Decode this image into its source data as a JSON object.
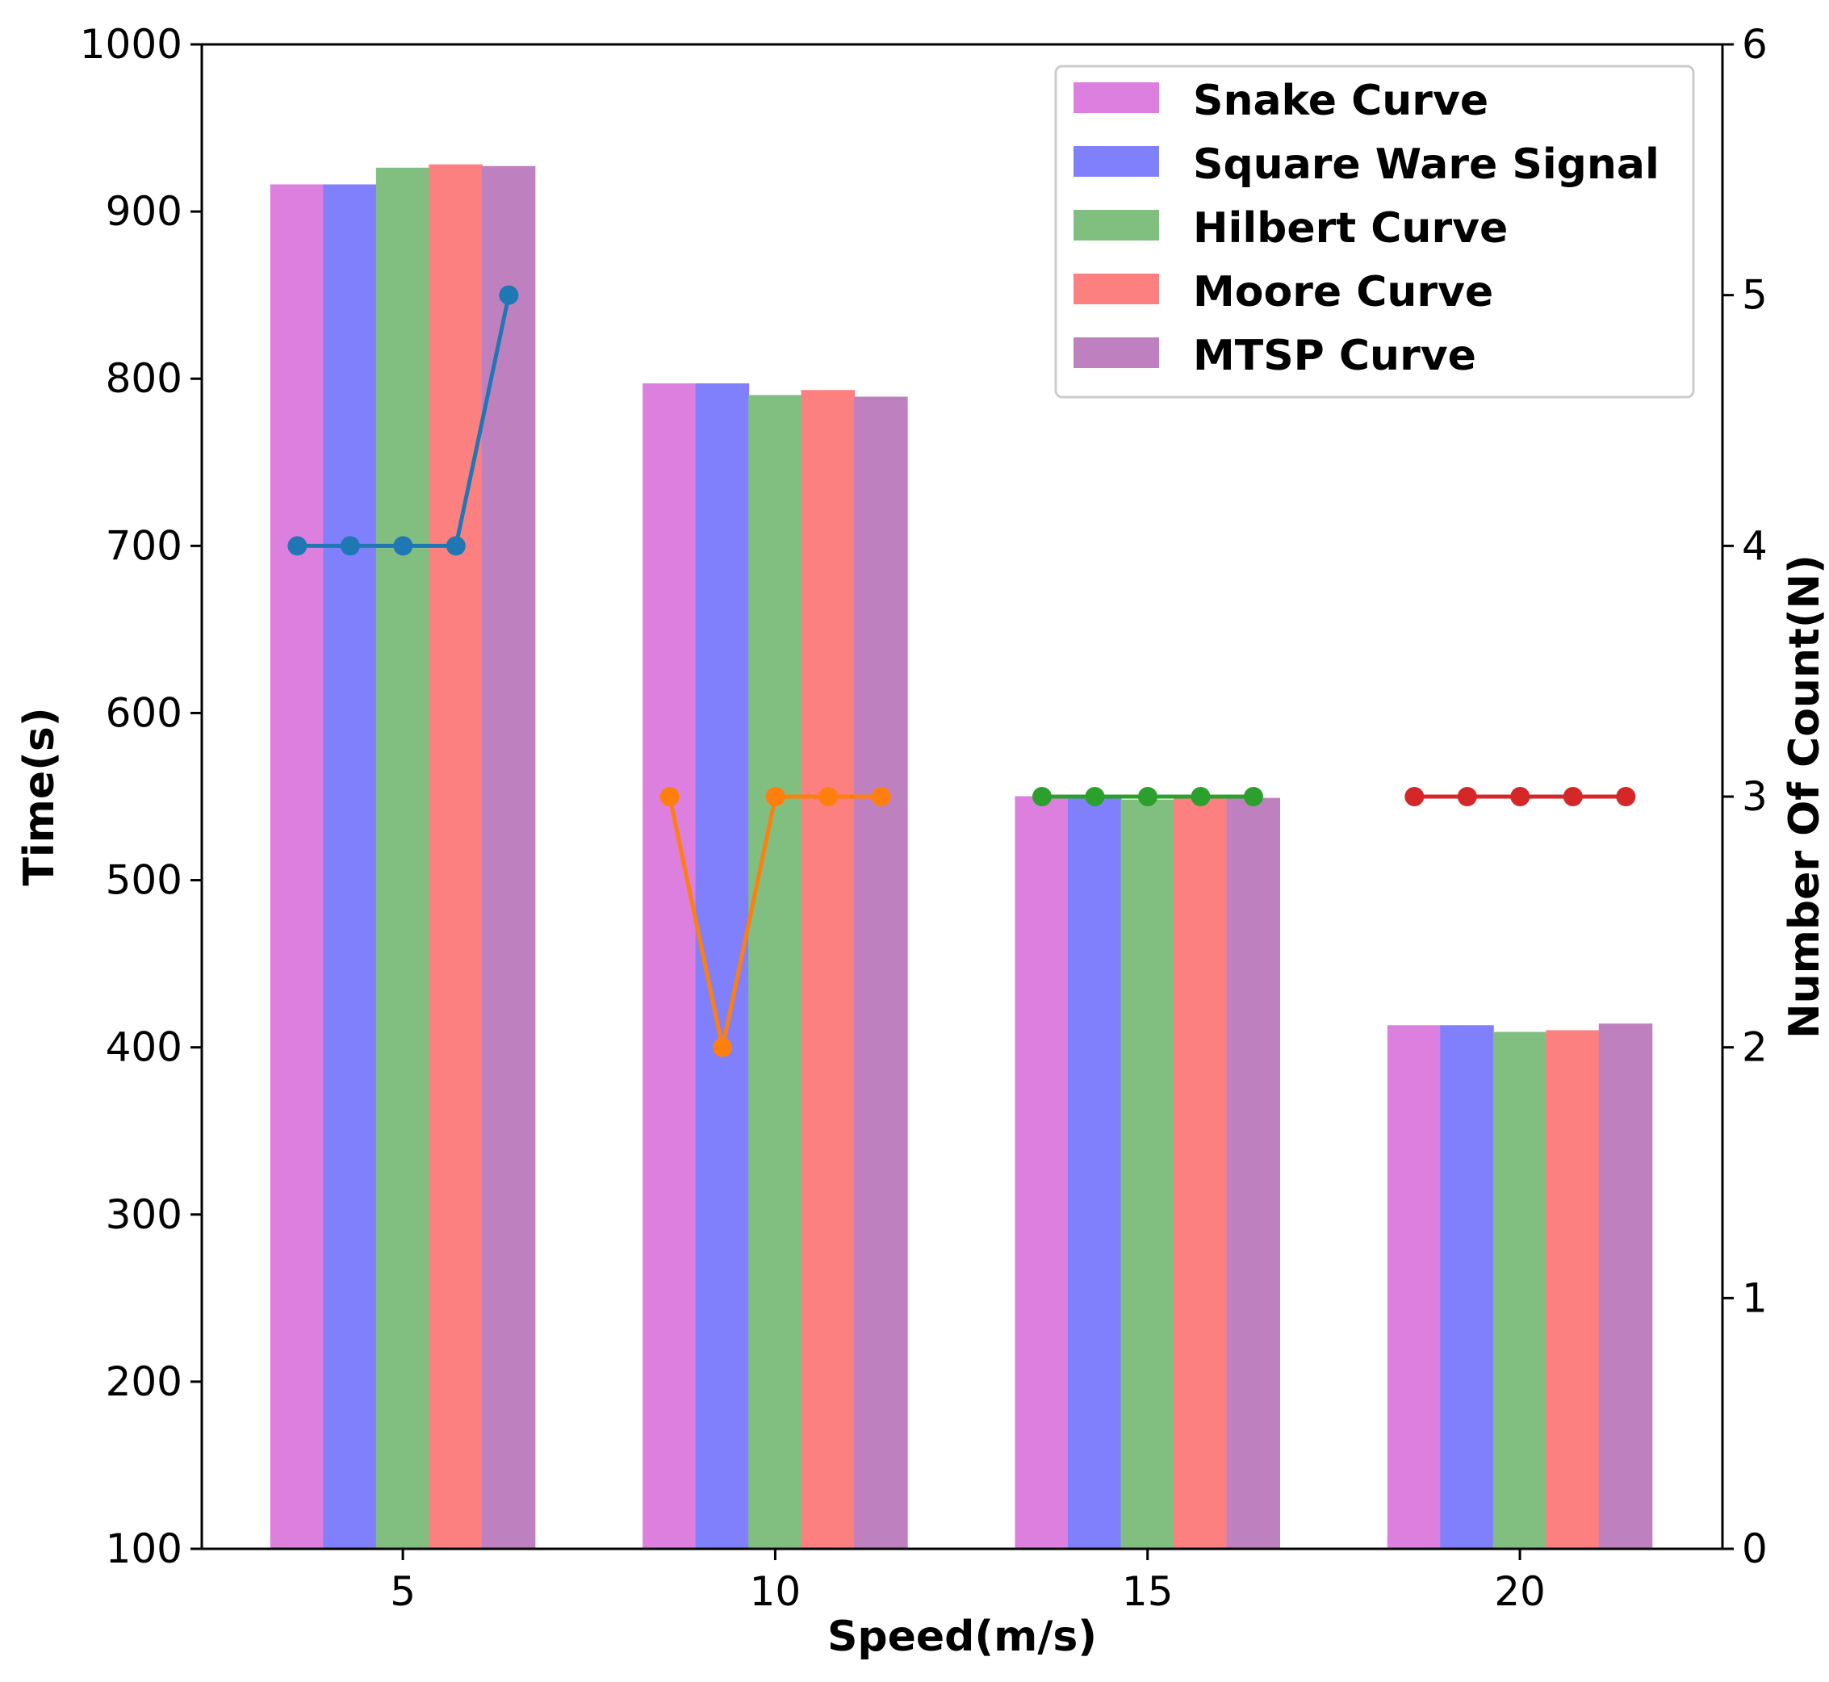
{
  "chart_data": {
    "type": "bar",
    "title": "",
    "xlabel": "Speed(m/s)",
    "ylabel": "Time(s)",
    "y2label": "Number Of Count(N)",
    "ylim": [
      100,
      1000
    ],
    "y2lim": [
      0,
      6
    ],
    "categories": [
      "5",
      "10",
      "15",
      "20"
    ],
    "yticks": [
      "100",
      "200",
      "300",
      "400",
      "500",
      "600",
      "700",
      "800",
      "900",
      "1000"
    ],
    "y2ticks": [
      "0",
      "1",
      "2",
      "3",
      "4",
      "5",
      "6"
    ],
    "legend_position": "top-right",
    "series": [
      {
        "name": "Snake Curve",
        "color": "#dd7fdf",
        "values": [
          916,
          797,
          550,
          413
        ]
      },
      {
        "name": "Square Ware Signal",
        "color": "#8080fd",
        "values": [
          916,
          797,
          550,
          413
        ]
      },
      {
        "name": "Hilbert Curve",
        "color": "#80bf80",
        "values": [
          926,
          790,
          548,
          409
        ]
      },
      {
        "name": "Moore Curve",
        "color": "#fd8080",
        "values": [
          928,
          793,
          549,
          410
        ]
      },
      {
        "name": "MTSP Curve",
        "color": "#bf80bf",
        "values": [
          927,
          789,
          549,
          414
        ]
      }
    ],
    "count_lines": [
      {
        "category": "5",
        "color": "#1f77b4",
        "values": [
          4,
          4,
          4,
          4,
          5
        ]
      },
      {
        "category": "10",
        "color": "#ff7f0e",
        "values": [
          3,
          2,
          3,
          3,
          3
        ]
      },
      {
        "category": "15",
        "color": "#2ca02c",
        "values": [
          3,
          3,
          3,
          3,
          3
        ]
      },
      {
        "category": "20",
        "color": "#d62728",
        "values": [
          3,
          3,
          3,
          3,
          3
        ]
      }
    ]
  }
}
